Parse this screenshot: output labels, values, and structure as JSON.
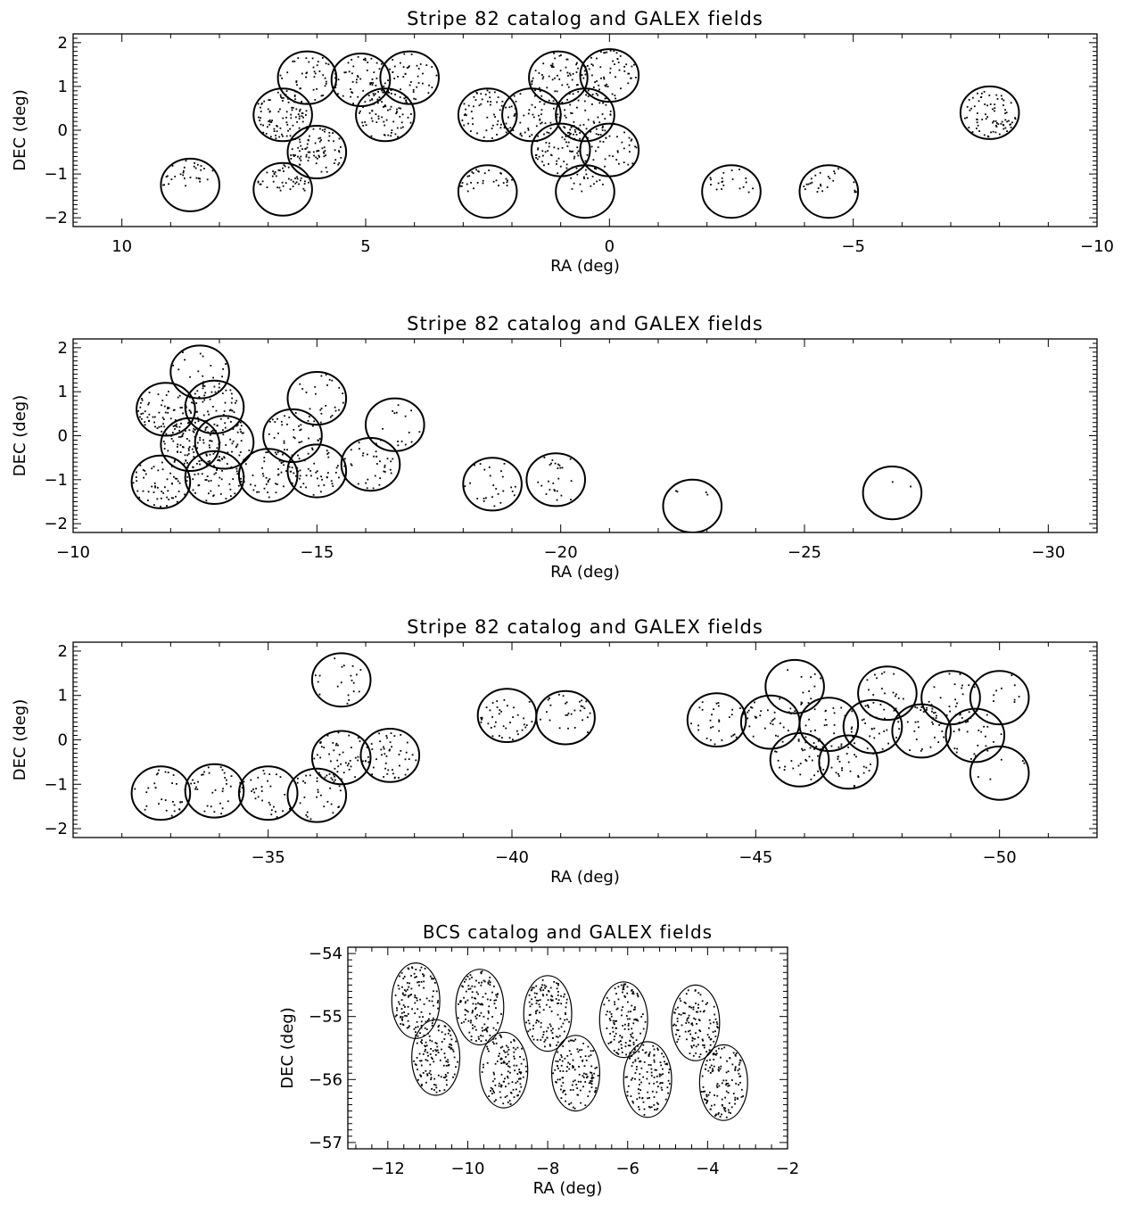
{
  "chart_data": [
    {
      "type": "scatter",
      "title": "Stripe 82 catalog and GALEX fields",
      "xlabel": "RA (deg)",
      "ylabel": "DEC (deg)",
      "xlim": [
        11,
        -10
      ],
      "ylim": [
        -2.2,
        2.2
      ],
      "xticks": [
        10,
        5,
        0,
        -5,
        -10
      ],
      "xtick_labels": [
        "10",
        "5",
        "0",
        "−5",
        "−10"
      ],
      "yticks": [
        -2,
        -1,
        0,
        1,
        2
      ],
      "ytick_labels": [
        "−2",
        "−1",
        "0",
        "1",
        "2"
      ],
      "grid": false,
      "series": [
        {
          "kind": "galex_fields",
          "radius_deg": 0.6,
          "centers": [
            [
              8.6,
              -1.25
            ],
            [
              6.2,
              1.2
            ],
            [
              6.7,
              0.35
            ],
            [
              6.0,
              -0.5
            ],
            [
              6.7,
              -1.35
            ],
            [
              5.1,
              1.15
            ],
            [
              4.6,
              0.35
            ],
            [
              4.1,
              1.2
            ],
            [
              2.5,
              0.35
            ],
            [
              2.5,
              -1.4
            ],
            [
              1.6,
              0.35
            ],
            [
              1.05,
              1.2
            ],
            [
              1.0,
              -0.45
            ],
            [
              0.5,
              0.35
            ],
            [
              0.0,
              1.25
            ],
            [
              0.5,
              -1.4
            ],
            [
              0.0,
              -0.45
            ],
            [
              -2.5,
              -1.4
            ],
            [
              -4.5,
              -1.4
            ],
            [
              -7.8,
              0.4
            ]
          ]
        },
        {
          "kind": "catalog_sources",
          "regions": [
            {
              "ra": 8.6,
              "dec": -1.25,
              "n": 30,
              "top": true
            },
            {
              "ra": 6.2,
              "dec": 1.2,
              "n": 40,
              "top": false
            },
            {
              "ra": 6.7,
              "dec": 0.35,
              "n": 90,
              "top": false
            },
            {
              "ra": 6.0,
              "dec": -0.5,
              "n": 80,
              "top": false
            },
            {
              "ra": 6.7,
              "dec": -1.35,
              "n": 45,
              "top": true
            },
            {
              "ra": 5.1,
              "dec": 1.15,
              "n": 55,
              "top": false
            },
            {
              "ra": 4.6,
              "dec": 0.35,
              "n": 75,
              "top": false
            },
            {
              "ra": 4.1,
              "dec": 1.2,
              "n": 45,
              "top": false
            },
            {
              "ra": 2.5,
              "dec": 0.35,
              "n": 60,
              "top": false
            },
            {
              "ra": 2.5,
              "dec": -1.4,
              "n": 30,
              "top": true
            },
            {
              "ra": 1.6,
              "dec": 0.35,
              "n": 45,
              "top": false
            },
            {
              "ra": 1.05,
              "dec": 1.2,
              "n": 60,
              "top": false
            },
            {
              "ra": 1.0,
              "dec": -0.45,
              "n": 60,
              "top": false
            },
            {
              "ra": 0.5,
              "dec": 0.35,
              "n": 60,
              "top": false
            },
            {
              "ra": 0.0,
              "dec": 1.25,
              "n": 60,
              "top": false
            },
            {
              "ra": 0.5,
              "dec": -1.4,
              "n": 20,
              "top": true
            },
            {
              "ra": 0.0,
              "dec": -0.45,
              "n": 40,
              "top": false
            },
            {
              "ra": -2.5,
              "dec": -1.4,
              "n": 20,
              "top": true
            },
            {
              "ra": -4.5,
              "dec": -1.4,
              "n": 25,
              "top": true
            },
            {
              "ra": -7.8,
              "dec": 0.4,
              "n": 75,
              "top": false
            }
          ]
        }
      ]
    },
    {
      "type": "scatter",
      "title": "Stripe 82 catalog and GALEX fields",
      "xlabel": "RA (deg)",
      "ylabel": "DEC (deg)",
      "xlim": [
        -10,
        -31
      ],
      "ylim": [
        -2.2,
        2.2
      ],
      "xticks": [
        -10,
        -15,
        -20,
        -25,
        -30
      ],
      "xtick_labels": [
        "−10",
        "−15",
        "−20",
        "−25",
        "−30"
      ],
      "yticks": [
        -2,
        -1,
        0,
        1,
        2
      ],
      "ytick_labels": [
        "−2",
        "−1",
        "0",
        "1",
        "2"
      ],
      "grid": false,
      "series": [
        {
          "kind": "galex_fields",
          "radius_deg": 0.6,
          "centers": [
            [
              -12.6,
              1.45
            ],
            [
              -11.9,
              0.6
            ],
            [
              -12.9,
              0.65
            ],
            [
              -12.4,
              -0.2
            ],
            [
              -13.1,
              -0.15
            ],
            [
              -11.8,
              -1.05
            ],
            [
              -12.9,
              -0.95
            ],
            [
              -14.0,
              -0.9
            ],
            [
              -14.5,
              0.0
            ],
            [
              -15.0,
              -0.8
            ],
            [
              -15.0,
              0.85
            ],
            [
              -16.1,
              -0.65
            ],
            [
              -16.6,
              0.25
            ],
            [
              -18.6,
              -1.1
            ],
            [
              -19.9,
              -1.0
            ],
            [
              -22.7,
              -1.6
            ],
            [
              -26.8,
              -1.3
            ]
          ]
        },
        {
          "kind": "catalog_sources",
          "regions": [
            {
              "ra": -12.6,
              "dec": 1.45,
              "n": 20,
              "top": false
            },
            {
              "ra": -11.9,
              "dec": 0.6,
              "n": 70,
              "top": false
            },
            {
              "ra": -12.9,
              "dec": 0.65,
              "n": 50,
              "top": false
            },
            {
              "ra": -12.4,
              "dec": -0.2,
              "n": 70,
              "top": false
            },
            {
              "ra": -13.1,
              "dec": -0.15,
              "n": 50,
              "top": false
            },
            {
              "ra": -11.8,
              "dec": -1.05,
              "n": 55,
              "top": false
            },
            {
              "ra": -12.9,
              "dec": -0.95,
              "n": 60,
              "top": false
            },
            {
              "ra": -14.0,
              "dec": -0.9,
              "n": 45,
              "top": false
            },
            {
              "ra": -14.5,
              "dec": 0.0,
              "n": 40,
              "top": false
            },
            {
              "ra": -15.0,
              "dec": -0.8,
              "n": 45,
              "top": false
            },
            {
              "ra": -15.0,
              "dec": 0.85,
              "n": 25,
              "top": false
            },
            {
              "ra": -16.1,
              "dec": -0.65,
              "n": 35,
              "top": false
            },
            {
              "ra": -16.6,
              "dec": 0.25,
              "n": 15,
              "top": false
            },
            {
              "ra": -18.6,
              "dec": -1.1,
              "n": 25,
              "top": false
            },
            {
              "ra": -19.9,
              "dec": -1.0,
              "n": 25,
              "top": false
            },
            {
              "ra": -22.7,
              "dec": -1.6,
              "n": 4,
              "top": true
            },
            {
              "ra": -26.8,
              "dec": -1.3,
              "n": 2,
              "top": true
            }
          ]
        }
      ]
    },
    {
      "type": "scatter",
      "title": "Stripe 82 catalog and GALEX fields",
      "xlabel": "RA (deg)",
      "ylabel": "DEC (deg)",
      "xlim": [
        -31,
        -52
      ],
      "ylim": [
        -2.2,
        2.2
      ],
      "xticks": [
        -35,
        -40,
        -45,
        -50
      ],
      "xtick_labels": [
        "−35",
        "−40",
        "−45",
        "−50"
      ],
      "yticks": [
        -2,
        -1,
        0,
        1,
        2
      ],
      "ytick_labels": [
        "−2",
        "−1",
        "0",
        "1",
        "2"
      ],
      "grid": false,
      "series": [
        {
          "kind": "galex_fields",
          "radius_deg": 0.6,
          "centers": [
            [
              -32.8,
              -1.2
            ],
            [
              -33.9,
              -1.15
            ],
            [
              -35.0,
              -1.2
            ],
            [
              -36.0,
              -1.25
            ],
            [
              -36.5,
              -0.4
            ],
            [
              -37.5,
              -0.35
            ],
            [
              -36.5,
              1.35
            ],
            [
              -39.9,
              0.55
            ],
            [
              -41.1,
              0.5
            ],
            [
              -44.2,
              0.45
            ],
            [
              -45.3,
              0.4
            ],
            [
              -45.8,
              1.2
            ],
            [
              -45.9,
              -0.45
            ],
            [
              -46.5,
              0.35
            ],
            [
              -46.9,
              -0.5
            ],
            [
              -47.4,
              0.3
            ],
            [
              -47.7,
              1.05
            ],
            [
              -48.4,
              0.2
            ],
            [
              -49.0,
              0.95
            ],
            [
              -49.5,
              0.1
            ],
            [
              -50.0,
              0.95
            ],
            [
              -50.0,
              -0.75
            ]
          ]
        },
        {
          "kind": "catalog_sources",
          "regions": [
            {
              "ra": -32.8,
              "dec": -1.2,
              "n": 30,
              "top": false
            },
            {
              "ra": -33.9,
              "dec": -1.15,
              "n": 35,
              "top": false
            },
            {
              "ra": -35.0,
              "dec": -1.2,
              "n": 30,
              "top": false
            },
            {
              "ra": -36.0,
              "dec": -1.25,
              "n": 30,
              "top": false
            },
            {
              "ra": -36.5,
              "dec": -0.4,
              "n": 50,
              "top": false
            },
            {
              "ra": -37.5,
              "dec": -0.35,
              "n": 50,
              "top": false
            },
            {
              "ra": -36.5,
              "dec": 1.35,
              "n": 20,
              "top": false
            },
            {
              "ra": -39.9,
              "dec": 0.55,
              "n": 40,
              "top": false
            },
            {
              "ra": -41.1,
              "dec": 0.5,
              "n": 30,
              "top": false
            },
            {
              "ra": -44.2,
              "dec": 0.45,
              "n": 30,
              "top": false
            },
            {
              "ra": -45.3,
              "dec": 0.4,
              "n": 30,
              "top": false
            },
            {
              "ra": -45.8,
              "dec": 1.2,
              "n": 15,
              "top": false
            },
            {
              "ra": -45.9,
              "dec": -0.45,
              "n": 35,
              "top": false
            },
            {
              "ra": -46.5,
              "dec": 0.35,
              "n": 30,
              "top": false
            },
            {
              "ra": -46.9,
              "dec": -0.5,
              "n": 30,
              "top": false
            },
            {
              "ra": -47.4,
              "dec": 0.3,
              "n": 25,
              "top": false
            },
            {
              "ra": -47.7,
              "dec": 1.05,
              "n": 20,
              "top": false
            },
            {
              "ra": -48.4,
              "dec": 0.2,
              "n": 30,
              "top": false
            },
            {
              "ra": -49.0,
              "dec": 0.95,
              "n": 25,
              "top": false
            },
            {
              "ra": -49.5,
              "dec": 0.1,
              "n": 30,
              "top": false
            },
            {
              "ra": -50.0,
              "dec": 0.95,
              "n": 10,
              "top": false
            },
            {
              "ra": -50.0,
              "dec": -0.75,
              "n": 5,
              "top": false
            }
          ]
        }
      ]
    },
    {
      "type": "scatter",
      "title": "BCS catalog and GALEX fields",
      "xlabel": "RA (deg)",
      "ylabel": "DEC (deg)",
      "xlim": [
        -13,
        -2
      ],
      "ylim": [
        -57.1,
        -53.9
      ],
      "xticks": [
        -12,
        -10,
        -8,
        -6,
        -4,
        -2
      ],
      "xtick_labels": [
        "−12",
        "−10",
        "−8",
        "−6",
        "−4",
        "−2"
      ],
      "yticks": [
        -57,
        -56,
        -55,
        -54
      ],
      "ytick_labels": [
        "−57",
        "−56",
        "−55",
        "−54"
      ],
      "grid": false,
      "series": [
        {
          "kind": "galex_fields",
          "radius_deg": 0.6,
          "centers": [
            [
              -11.3,
              -54.75
            ],
            [
              -9.7,
              -54.85
            ],
            [
              -8.0,
              -54.95
            ],
            [
              -6.1,
              -55.05
            ],
            [
              -4.3,
              -55.1
            ],
            [
              -10.8,
              -55.65
            ],
            [
              -9.1,
              -55.85
            ],
            [
              -7.3,
              -55.9
            ],
            [
              -5.5,
              -56.0
            ],
            [
              -3.6,
              -56.05
            ]
          ]
        },
        {
          "kind": "catalog_sources",
          "regions": [
            {
              "ra": -11.3,
              "dec": -54.75,
              "n": 120,
              "top": false
            },
            {
              "ra": -9.7,
              "dec": -54.85,
              "n": 120,
              "top": false
            },
            {
              "ra": -8.0,
              "dec": -54.95,
              "n": 120,
              "top": false
            },
            {
              "ra": -6.1,
              "dec": -55.05,
              "n": 120,
              "top": false
            },
            {
              "ra": -4.3,
              "dec": -55.1,
              "n": 110,
              "top": false
            },
            {
              "ra": -10.8,
              "dec": -55.65,
              "n": 120,
              "top": false
            },
            {
              "ra": -9.1,
              "dec": -55.85,
              "n": 120,
              "top": false
            },
            {
              "ra": -7.3,
              "dec": -55.9,
              "n": 120,
              "top": false
            },
            {
              "ra": -5.5,
              "dec": -56.0,
              "n": 120,
              "top": false
            },
            {
              "ra": -3.6,
              "dec": -56.05,
              "n": 120,
              "top": false
            }
          ]
        }
      ]
    }
  ]
}
